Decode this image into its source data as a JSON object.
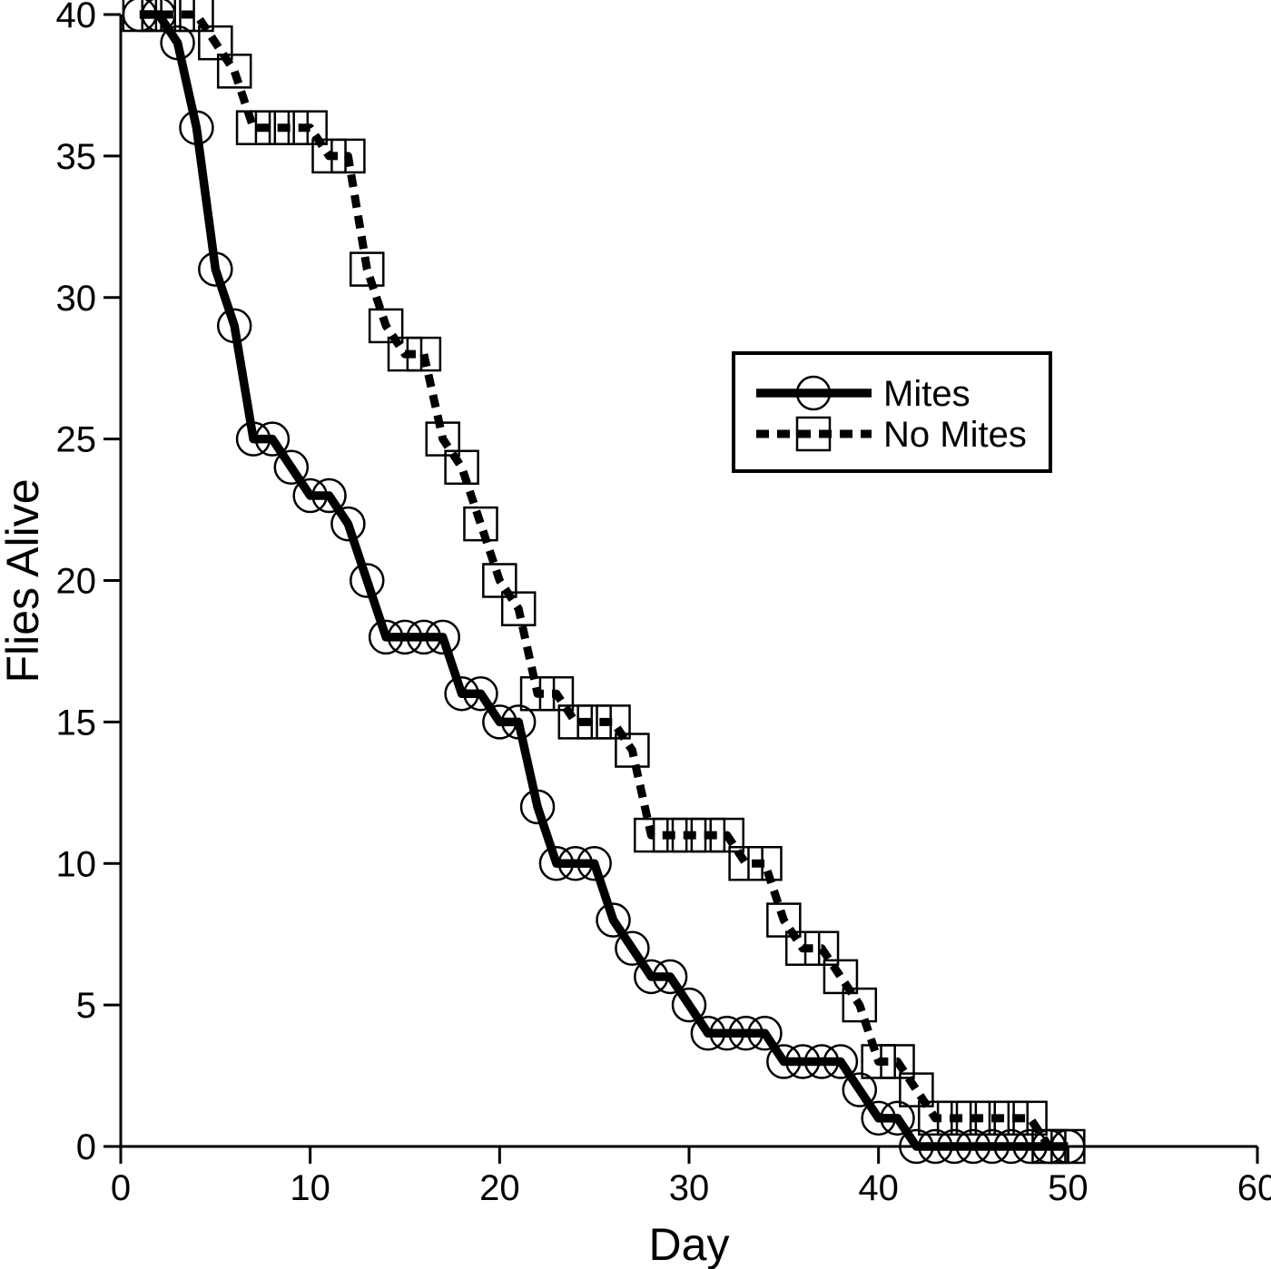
{
  "figure": {
    "background_color": "#ffffff",
    "foreground_color": "#000000"
  },
  "chart_data": {
    "type": "line",
    "subtype": "survival-curve-steps",
    "title": "",
    "xlabel": "Day",
    "ylabel": "Flies Alive",
    "xlim": [
      0,
      60
    ],
    "ylim": [
      0,
      40
    ],
    "xticks": [
      0,
      10,
      20,
      30,
      40,
      50,
      60
    ],
    "yticks": [
      0,
      5,
      10,
      15,
      20,
      25,
      30,
      35,
      40
    ],
    "grid": false,
    "legend": {
      "position": "inside-upper-right",
      "entries": [
        "Mites",
        "No Mites"
      ]
    },
    "series": [
      {
        "name": "Mites",
        "marker": "circle",
        "line_style": "solid",
        "color": "#000000",
        "x": [
          1,
          2,
          3,
          4,
          5,
          6,
          7,
          8,
          9,
          10,
          11,
          12,
          13,
          14,
          15,
          16,
          17,
          18,
          19,
          20,
          21,
          22,
          23,
          24,
          25,
          26,
          27,
          28,
          29,
          30,
          31,
          32,
          33,
          34,
          35,
          36,
          37,
          38,
          39,
          40,
          41,
          42,
          43,
          44,
          45,
          46,
          47,
          48,
          49,
          50
        ],
        "y": [
          40,
          40,
          39,
          36,
          31,
          29,
          25,
          25,
          24,
          23,
          23,
          22,
          20,
          18,
          18,
          18,
          18,
          16,
          16,
          15,
          15,
          12,
          10,
          10,
          10,
          8,
          7,
          6,
          6,
          5,
          4,
          4,
          4,
          4,
          3,
          3,
          3,
          3,
          2,
          1,
          1,
          0,
          0,
          0,
          0,
          0,
          0,
          0,
          0,
          0
        ]
      },
      {
        "name": "No Mites",
        "marker": "square",
        "line_style": "dashed",
        "color": "#000000",
        "x": [
          1,
          2,
          3,
          4,
          5,
          6,
          7,
          8,
          9,
          10,
          11,
          12,
          13,
          14,
          15,
          16,
          17,
          18,
          19,
          20,
          21,
          22,
          23,
          24,
          25,
          26,
          27,
          28,
          29,
          30,
          31,
          32,
          33,
          34,
          35,
          36,
          37,
          38,
          39,
          40,
          41,
          42,
          43,
          44,
          45,
          46,
          47,
          48,
          49,
          50
        ],
        "y": [
          40,
          40,
          40,
          40,
          39,
          38,
          36,
          36,
          36,
          36,
          35,
          35,
          31,
          29,
          28,
          28,
          25,
          24,
          22,
          20,
          19,
          16,
          16,
          15,
          15,
          15,
          14,
          11,
          11,
          11,
          11,
          11,
          10,
          10,
          8,
          7,
          7,
          6,
          5,
          3,
          3,
          2,
          1,
          1,
          1,
          1,
          1,
          1,
          0,
          0
        ]
      }
    ]
  }
}
